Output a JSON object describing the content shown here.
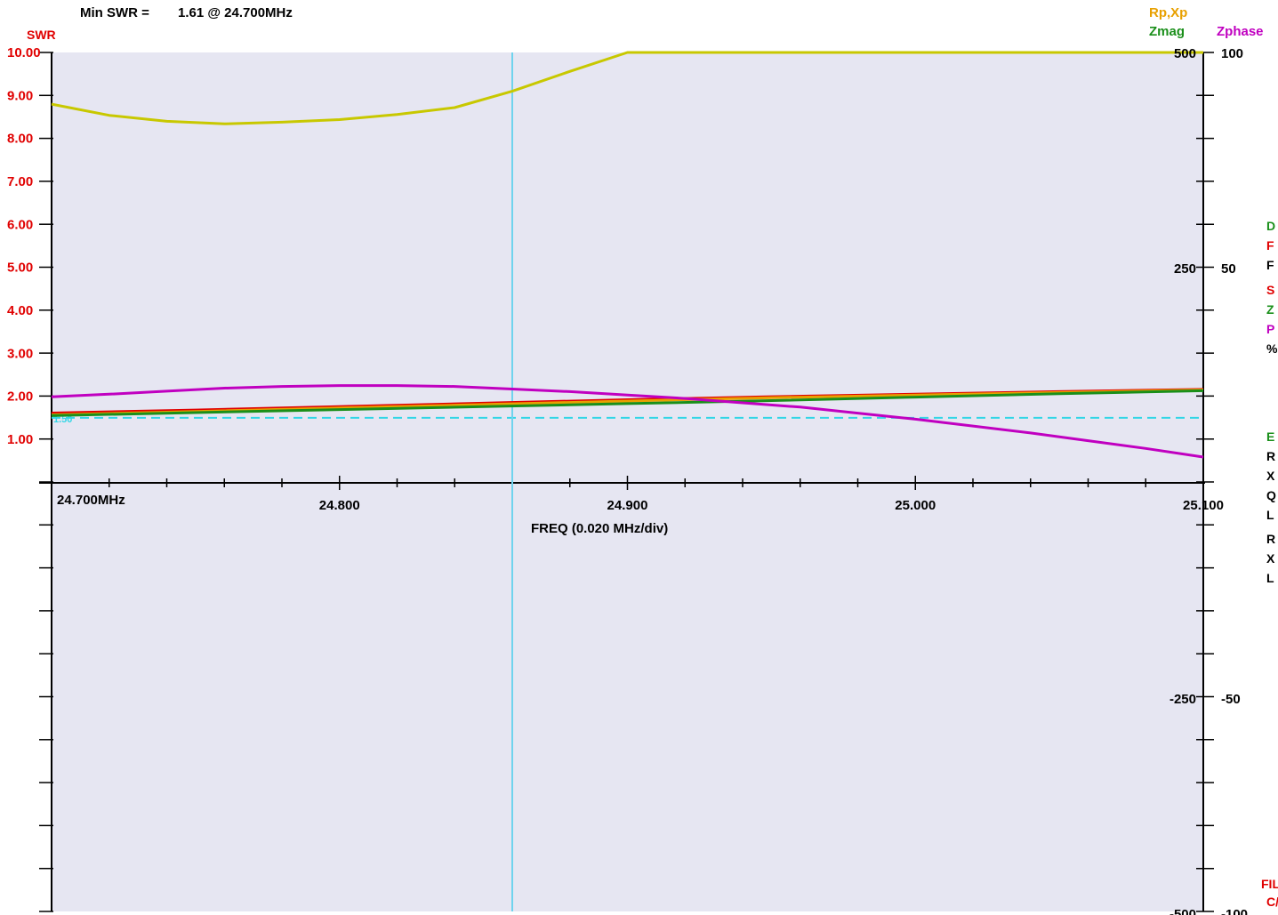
{
  "header": {
    "min_swr_label": "Min SWR =",
    "min_swr_value": "1.61 @  24.700MHz"
  },
  "legend": {
    "swr": "SWR",
    "rpxp": "Rp,Xp",
    "zmag": "Zmag",
    "zphase": "Zphase"
  },
  "right_panel_fragments": [
    {
      "text": "D",
      "color": "#1a8f1a"
    },
    {
      "text": "F",
      "color": "#e00000"
    },
    {
      "text": "F",
      "color": "#000000"
    },
    {
      "text": "S",
      "color": "#e00000"
    },
    {
      "text": "Z",
      "color": "#1a8f1a"
    },
    {
      "text": "P",
      "color": "#c000c0"
    },
    {
      "text": "%",
      "color": "#000000"
    },
    {
      "text": "E",
      "color": "#1a8f1a"
    },
    {
      "text": "R",
      "color": "#000000"
    },
    {
      "text": "X",
      "color": "#000000"
    },
    {
      "text": "Q",
      "color": "#000000"
    },
    {
      "text": "L",
      "color": "#000000"
    },
    {
      "text": "R",
      "color": "#000000"
    },
    {
      "text": "X",
      "color": "#000000"
    },
    {
      "text": "L",
      "color": "#000000"
    },
    {
      "text": "FIL",
      "color": "#e00000"
    },
    {
      "text": "C/",
      "color": "#e00000"
    }
  ],
  "chart_data": {
    "type": "line",
    "title": "Min SWR =  1.61 @  24.700MHz",
    "xlabel": "FREQ (0.020 MHz/div)",
    "x_range": [
      24.7,
      25.1
    ],
    "x_ticks": [
      "24.700MHz",
      "24.800",
      "24.900",
      "25.000",
      "25.100"
    ],
    "x_tick_values": [
      24.7,
      24.8,
      24.9,
      25.0,
      25.1
    ],
    "swr_axis": {
      "label": "SWR",
      "range": [
        0,
        10
      ],
      "ticks": [
        "10.00",
        "9.00",
        "8.00",
        "7.00",
        "6.00",
        "5.00",
        "4.00",
        "3.00",
        "2.00",
        "1.00"
      ],
      "tick_values": [
        10,
        9,
        8,
        7,
        6,
        5,
        4,
        3,
        2,
        1
      ]
    },
    "rpxp_axis": {
      "label": "Rp,Xp",
      "range": [
        -500,
        500
      ],
      "ticks": [
        "500",
        "250",
        "-250",
        "-500"
      ],
      "tick_values": [
        500,
        250,
        -250,
        -500
      ]
    },
    "zphase_axis": {
      "label": "Zphase",
      "range": [
        -100,
        100
      ],
      "ticks": [
        "100",
        "50",
        "-50",
        "-100"
      ],
      "tick_values": [
        100,
        50,
        -50,
        -100
      ]
    },
    "swr_reference": {
      "value": 1.5,
      "label": "1.50"
    },
    "cursor_freq": 24.86,
    "colors": {
      "swr": "#e00000",
      "rp": "#e8a000",
      "xp": "#c8c800",
      "zmag": "#1a8f1a",
      "zphase": "#c000c0",
      "cursor": "#6fd3ee",
      "reference": "#33d6e6",
      "plot_bg": "#e6e6f2"
    },
    "series": [
      {
        "name": "SWR",
        "axis": "swr",
        "color_key": "swr",
        "x": [
          24.7,
          24.75,
          24.8,
          24.85,
          24.9,
          24.95,
          25.0,
          25.05,
          25.1
        ],
        "y": [
          1.61,
          1.68,
          1.76,
          1.84,
          1.92,
          1.99,
          2.05,
          2.11,
          2.16
        ]
      },
      {
        "name": "Rp",
        "axis": "rpxp",
        "color_key": "rp",
        "x": [
          24.7,
          24.75,
          24.8,
          24.85,
          24.9,
          24.95,
          25.0,
          25.05,
          25.1
        ],
        "y": [
          79,
          83,
          87,
          91,
          95,
          99,
          102,
          105,
          108
        ]
      },
      {
        "name": "Xp",
        "axis": "rpxp",
        "color_key": "xp",
        "x": [
          24.7,
          24.72,
          24.74,
          24.76,
          24.78,
          24.8,
          24.82,
          24.84,
          24.86,
          24.88,
          24.9,
          24.95,
          25.0,
          25.05,
          25.1
        ],
        "y": [
          440,
          427,
          420,
          417,
          419,
          422,
          428,
          436,
          455,
          478,
          500,
          500,
          500,
          500,
          500
        ]
      },
      {
        "name": "Zmag",
        "axis": "swr",
        "color_key": "zmag",
        "x": [
          24.7,
          24.75,
          24.8,
          24.85,
          24.9,
          24.95,
          25.0,
          25.05,
          25.1
        ],
        "y": [
          1.55,
          1.62,
          1.69,
          1.76,
          1.83,
          1.9,
          1.98,
          2.06,
          2.13
        ]
      },
      {
        "name": "Zphase",
        "axis": "zphase",
        "color_key": "zphase",
        "x": [
          24.7,
          24.72,
          24.74,
          24.76,
          24.78,
          24.8,
          24.82,
          24.84,
          24.86,
          24.88,
          24.9,
          24.92,
          24.94,
          24.96,
          24.98,
          25.0,
          25.02,
          25.04,
          25.06,
          25.08,
          25.1
        ],
        "y": [
          20,
          20.6,
          21.3,
          22,
          22.4,
          22.6,
          22.6,
          22.4,
          21.8,
          21.2,
          20.4,
          19.6,
          18.6,
          17.6,
          16.2,
          14.8,
          13.2,
          11.6,
          9.8,
          8,
          6
        ]
      }
    ]
  }
}
